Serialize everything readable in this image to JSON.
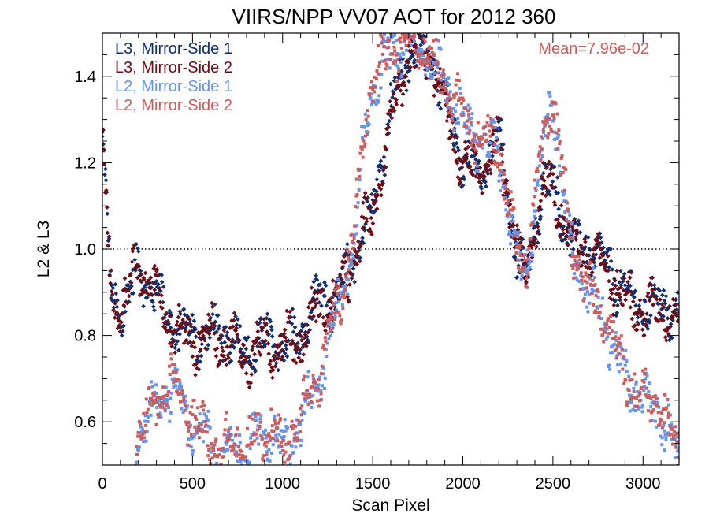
{
  "chart_data": {
    "type": "scatter",
    "title": "VIIRS/NPP VV07 AOT for 2012 360",
    "xlabel": "Scan Pixel",
    "ylabel": "L2 & L3",
    "xlim": [
      0,
      3200
    ],
    "ylim": [
      0.5,
      1.5
    ],
    "x_ticks": [
      0,
      500,
      1000,
      1500,
      2000,
      2500,
      3000
    ],
    "x_tick_labels": [
      "0",
      "500",
      "1000",
      "1500",
      "2000",
      "2500",
      "3000"
    ],
    "y_ticks": [
      0.6,
      0.8,
      1.0,
      1.2,
      1.4
    ],
    "y_tick_labels": [
      "0.6",
      "0.8",
      "1.0",
      "1.2",
      "1.4"
    ],
    "reference_line": {
      "y": 1.0,
      "style": "dotted"
    },
    "annotation": {
      "text": "Mean=7.96e-02",
      "color": "#cd5c5c",
      "placement": "top-right"
    },
    "legend_placement": "top-left",
    "grid": false,
    "series": [
      {
        "name": "L3, Mirror-Side 1",
        "color": "#102f6e",
        "x": [
          0,
          50,
          100,
          200,
          300,
          400,
          500,
          600,
          700,
          800,
          900,
          1000,
          1100,
          1200,
          1300,
          1400,
          1450,
          1500,
          1600,
          1700,
          1800,
          1900,
          2000,
          2100,
          2200,
          2300,
          2350,
          2400,
          2450,
          2500,
          2600,
          2700,
          2800,
          2900,
          3000,
          3100,
          3200
        ],
        "y": [
          1.25,
          0.88,
          0.85,
          0.95,
          0.9,
          0.82,
          0.8,
          0.8,
          0.8,
          0.76,
          0.79,
          0.78,
          0.8,
          0.88,
          0.88,
          0.99,
          1.05,
          1.1,
          1.32,
          1.45,
          1.47,
          1.35,
          1.2,
          1.18,
          1.25,
          1.0,
          0.92,
          1.05,
          1.15,
          1.15,
          1.02,
          1.0,
          0.96,
          0.9,
          0.86,
          0.88,
          0.84
        ]
      },
      {
        "name": "L3, Mirror-Side 2",
        "color": "#6e0c16",
        "x": [
          0,
          50,
          100,
          200,
          300,
          400,
          500,
          600,
          700,
          800,
          900,
          1000,
          1100,
          1200,
          1300,
          1400,
          1450,
          1500,
          1600,
          1700,
          1800,
          1900,
          2000,
          2100,
          2200,
          2300,
          2350,
          2400,
          2450,
          2500,
          2600,
          2700,
          2800,
          2900,
          3000,
          3100,
          3200
        ],
        "y": [
          1.24,
          0.89,
          0.86,
          0.96,
          0.9,
          0.81,
          0.79,
          0.8,
          0.79,
          0.75,
          0.78,
          0.78,
          0.79,
          0.87,
          0.88,
          0.98,
          1.04,
          1.08,
          1.3,
          1.44,
          1.46,
          1.33,
          1.19,
          1.18,
          1.24,
          1.01,
          0.93,
          1.06,
          1.15,
          1.14,
          1.02,
          0.99,
          0.95,
          0.89,
          0.85,
          0.87,
          0.83
        ]
      },
      {
        "name": "L2, Mirror-Side 1",
        "color": "#6495ed",
        "x": [
          180,
          200,
          250,
          300,
          350,
          400,
          450,
          500,
          550,
          600,
          650,
          700,
          750,
          800,
          850,
          900,
          950,
          1000,
          1050,
          1100,
          1200,
          1300,
          1400,
          1450,
          1500,
          1600,
          1700,
          1800,
          1900,
          2000,
          2100,
          2200,
          2300,
          2350,
          2400,
          2450,
          2500,
          2600,
          2700,
          2800,
          2900,
          3000,
          3100,
          3200
        ],
        "y": [
          0.52,
          0.58,
          0.6,
          0.64,
          0.67,
          0.68,
          0.63,
          0.6,
          0.57,
          0.55,
          0.52,
          0.53,
          0.55,
          0.52,
          0.57,
          0.56,
          0.58,
          0.52,
          0.57,
          0.6,
          0.7,
          0.85,
          1.03,
          1.25,
          1.38,
          1.45,
          1.48,
          1.46,
          1.38,
          1.3,
          1.25,
          1.22,
          0.98,
          0.95,
          1.1,
          1.25,
          1.35,
          1.0,
          0.9,
          0.82,
          0.7,
          0.65,
          0.62,
          0.52
        ]
      },
      {
        "name": "L2, Mirror-Side 2",
        "color": "#cd5c5c",
        "x": [
          180,
          200,
          250,
          300,
          350,
          400,
          450,
          500,
          550,
          600,
          650,
          700,
          750,
          800,
          850,
          900,
          950,
          1000,
          1050,
          1100,
          1200,
          1300,
          1400,
          1450,
          1500,
          1600,
          1700,
          1800,
          1900,
          2000,
          2100,
          2200,
          2300,
          2350,
          2400,
          2450,
          2500,
          2600,
          2700,
          2800,
          2900,
          3000,
          3100,
          3200
        ],
        "y": [
          0.53,
          0.59,
          0.61,
          0.65,
          0.68,
          0.69,
          0.64,
          0.61,
          0.58,
          0.56,
          0.53,
          0.54,
          0.56,
          0.53,
          0.58,
          0.57,
          0.59,
          0.53,
          0.58,
          0.61,
          0.71,
          0.86,
          1.04,
          1.26,
          1.39,
          1.46,
          1.49,
          1.47,
          1.39,
          1.31,
          1.26,
          1.23,
          0.99,
          0.96,
          1.11,
          1.26,
          1.36,
          1.01,
          0.91,
          0.83,
          0.71,
          0.66,
          0.63,
          0.53
        ]
      }
    ]
  }
}
